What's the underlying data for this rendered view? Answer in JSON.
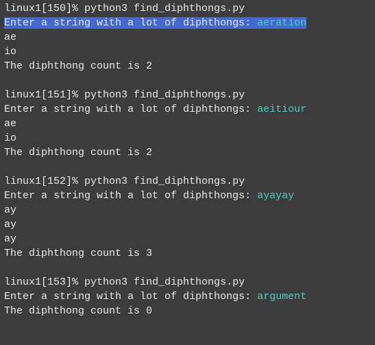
{
  "terminal": {
    "background_color": "#3c3c3c",
    "text_color": "#e8e8e8",
    "input_color": "#4dd0c0",
    "highlight_bg": "#4169d1",
    "font_family": "Courier New",
    "font_size": 15,
    "runs": [
      {
        "prompt": "linux1[150]% ",
        "command": "python3 find_diphthongs.py",
        "prompt_label": "Enter a string with a lot of diphthongs: ",
        "user_input": "aeration",
        "highlighted": true,
        "outputs": [
          "ae",
          "io",
          "The diphthong count is 2"
        ]
      },
      {
        "prompt": "linux1[151]% ",
        "command": "python3 find_diphthongs.py",
        "prompt_label": "Enter a string with a lot of diphthongs: ",
        "user_input": "aeitiour",
        "highlighted": false,
        "outputs": [
          "ae",
          "io",
          "The diphthong count is 2"
        ]
      },
      {
        "prompt": "linux1[152]% ",
        "command": "python3 find_diphthongs.py",
        "prompt_label": "Enter a string with a lot of diphthongs: ",
        "user_input": "ayayay",
        "highlighted": false,
        "outputs": [
          "ay",
          "ay",
          "ay",
          "The diphthong count is 3"
        ]
      },
      {
        "prompt": "linux1[153]% ",
        "command": "python3 find_diphthongs.py",
        "prompt_label": "Enter a string with a lot of diphthongs: ",
        "user_input": "argument",
        "highlighted": false,
        "outputs": [
          "The diphthong count is 0"
        ]
      }
    ]
  }
}
